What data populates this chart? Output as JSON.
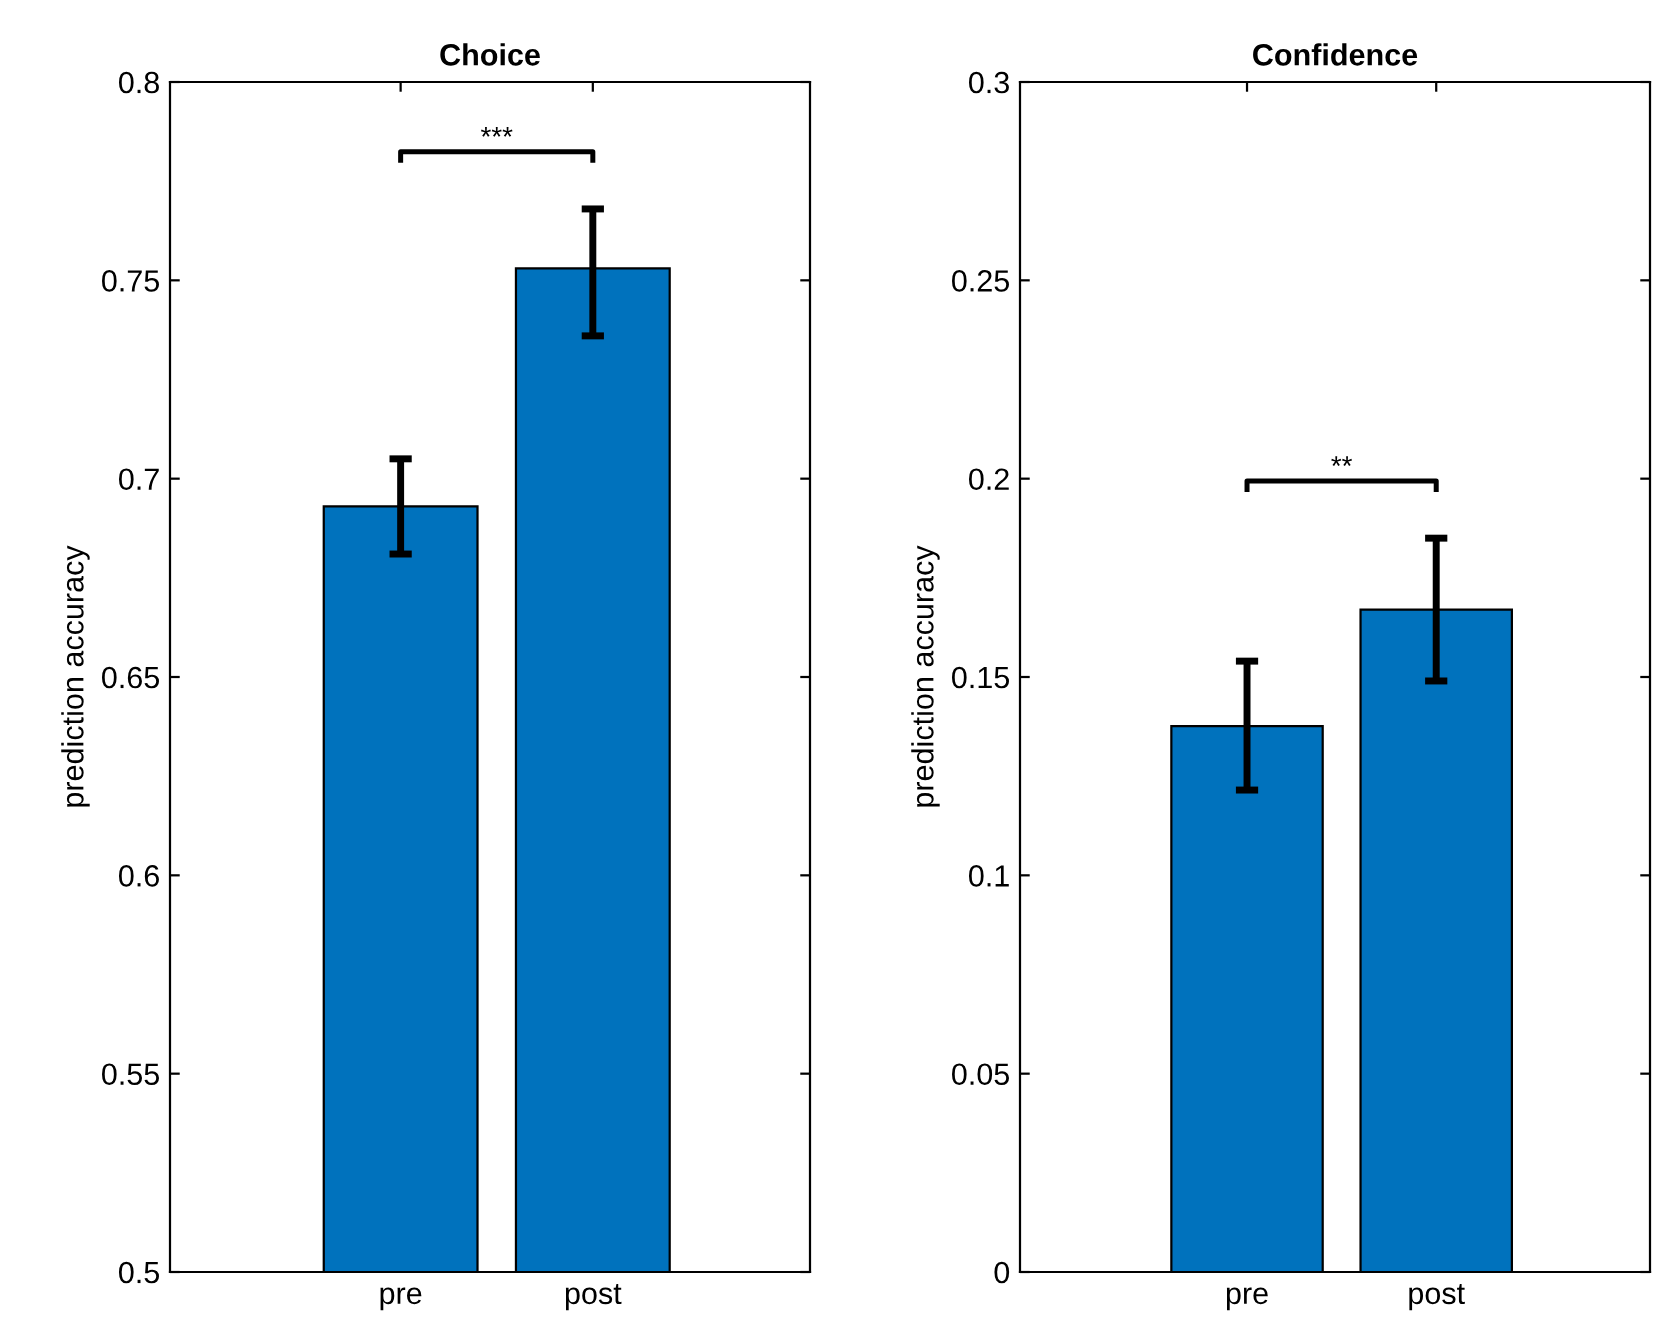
{
  "chart_data": [
    {
      "type": "bar",
      "title": "Choice",
      "ylabel": "prediction accuracy",
      "categories": [
        "pre",
        "post"
      ],
      "values": [
        0.693,
        0.753
      ],
      "errors": [
        [
          0.681,
          0.705
        ],
        [
          0.736,
          0.768
        ]
      ],
      "color": "#0072bd",
      "ylim": [
        0.5,
        0.8
      ],
      "yticks": [
        0.5,
        0.55,
        0.6,
        0.65,
        0.7,
        0.75,
        0.8
      ],
      "grid": false,
      "annotations": [
        "***"
      ]
    },
    {
      "type": "bar",
      "title": "Confidence",
      "ylabel": "prediction accuracy",
      "categories": [
        "pre",
        "post"
      ],
      "values": [
        0.1376,
        0.167
      ],
      "errors": [
        [
          0.1215,
          0.154
        ],
        [
          0.149,
          0.185
        ]
      ],
      "color": "#0072bd",
      "ylim": [
        0,
        0.3
      ],
      "yticks": [
        0,
        0.05,
        0.1,
        0.15,
        0.2,
        0.25,
        0.3
      ],
      "grid": false,
      "annotations": [
        "**"
      ]
    }
  ]
}
